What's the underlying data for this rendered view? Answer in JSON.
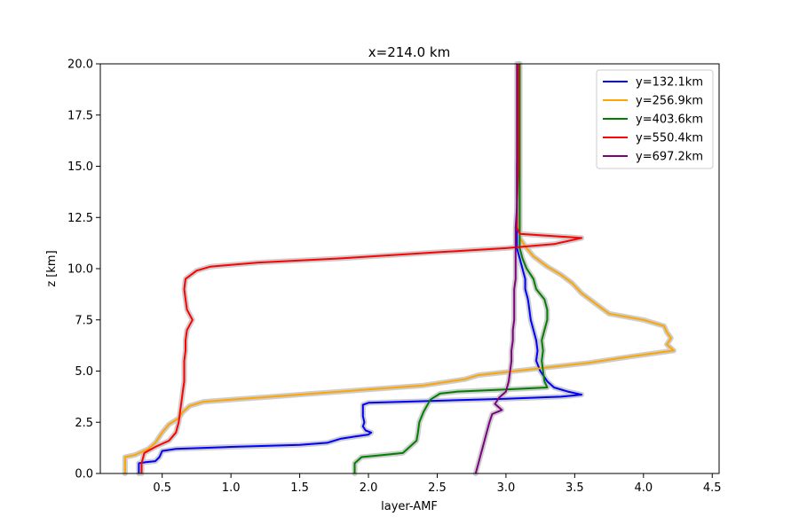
{
  "chart_data": {
    "type": "line",
    "title": "x=214.0 km",
    "xlabel": "layer-AMF",
    "ylabel": "z [km]",
    "xlim": [
      0.05,
      4.55
    ],
    "ylim": [
      0,
      20
    ],
    "xticks": [
      "0.5",
      "1.0",
      "1.5",
      "2.0",
      "2.5",
      "3.0",
      "3.5",
      "4.0",
      "4.5"
    ],
    "yticks": [
      "0.0",
      "2.5",
      "5.0",
      "7.5",
      "10.0",
      "12.5",
      "15.0",
      "17.5",
      "20.0"
    ],
    "legend_position": "top-right",
    "uncertainty_band_color": "#c8c8c8",
    "series": [
      {
        "name": "y=132.1km",
        "color": "#0000ff",
        "points": [
          [
            0.33,
            0
          ],
          [
            0.33,
            0.5
          ],
          [
            0.38,
            0.55
          ],
          [
            0.45,
            0.6
          ],
          [
            0.48,
            0.8
          ],
          [
            0.5,
            1.1
          ],
          [
            0.6,
            1.2
          ],
          [
            1.0,
            1.3
          ],
          [
            1.5,
            1.4
          ],
          [
            1.7,
            1.5
          ],
          [
            1.8,
            1.7
          ],
          [
            1.9,
            1.8
          ],
          [
            2.0,
            1.9
          ],
          [
            2.02,
            2.0
          ],
          [
            1.98,
            2.1
          ],
          [
            1.96,
            2.3
          ],
          [
            1.97,
            2.5
          ],
          [
            1.96,
            2.8
          ],
          [
            1.96,
            3.1
          ],
          [
            1.96,
            3.35
          ],
          [
            2.0,
            3.45
          ],
          [
            2.5,
            3.55
          ],
          [
            3.0,
            3.65
          ],
          [
            3.4,
            3.75
          ],
          [
            3.55,
            3.85
          ],
          [
            3.45,
            4.0
          ],
          [
            3.35,
            4.2
          ],
          [
            3.3,
            4.5
          ],
          [
            3.25,
            5.0
          ],
          [
            3.22,
            5.5
          ],
          [
            3.23,
            6.0
          ],
          [
            3.22,
            6.5
          ],
          [
            3.2,
            7.0
          ],
          [
            3.18,
            7.5
          ],
          [
            3.17,
            8.0
          ],
          [
            3.16,
            8.5
          ],
          [
            3.14,
            9.0
          ],
          [
            3.14,
            9.5
          ],
          [
            3.12,
            10.0
          ],
          [
            3.1,
            10.5
          ],
          [
            3.08,
            11.0
          ],
          [
            3.08,
            11.5
          ],
          [
            3.08,
            12.0
          ],
          [
            3.08,
            13.0
          ],
          [
            3.08,
            15.0
          ],
          [
            3.09,
            17.5
          ],
          [
            3.09,
            20.0
          ]
        ]
      },
      {
        "name": "y=256.9km",
        "color": "#ffa500",
        "points": [
          [
            0.23,
            0
          ],
          [
            0.23,
            0.8
          ],
          [
            0.3,
            0.9
          ],
          [
            0.4,
            1.2
          ],
          [
            0.45,
            1.5
          ],
          [
            0.5,
            2.0
          ],
          [
            0.55,
            2.4
          ],
          [
            0.62,
            2.7
          ],
          [
            0.65,
            3.0
          ],
          [
            0.7,
            3.3
          ],
          [
            0.8,
            3.5
          ],
          [
            1.0,
            3.6
          ],
          [
            1.3,
            3.75
          ],
          [
            1.6,
            3.9
          ],
          [
            2.0,
            4.1
          ],
          [
            2.4,
            4.3
          ],
          [
            2.7,
            4.6
          ],
          [
            2.8,
            4.8
          ],
          [
            3.2,
            5.1
          ],
          [
            3.6,
            5.4
          ],
          [
            3.9,
            5.7
          ],
          [
            4.22,
            6.0
          ],
          [
            4.17,
            6.3
          ],
          [
            4.2,
            6.6
          ],
          [
            4.17,
            6.9
          ],
          [
            4.15,
            7.2
          ],
          [
            4.0,
            7.5
          ],
          [
            3.75,
            7.8
          ],
          [
            3.65,
            8.3
          ],
          [
            3.55,
            8.8
          ],
          [
            3.48,
            9.3
          ],
          [
            3.4,
            9.7
          ],
          [
            3.3,
            10.1
          ],
          [
            3.2,
            10.6
          ],
          [
            3.15,
            11.0
          ],
          [
            3.1,
            11.5
          ],
          [
            3.1,
            12.0
          ],
          [
            3.1,
            13.0
          ],
          [
            3.1,
            15.0
          ],
          [
            3.1,
            17.5
          ],
          [
            3.1,
            20.0
          ]
        ]
      },
      {
        "name": "y=403.6km",
        "color": "#008000",
        "points": [
          [
            1.9,
            0
          ],
          [
            1.9,
            0.5
          ],
          [
            1.95,
            0.8
          ],
          [
            2.1,
            0.9
          ],
          [
            2.25,
            1.0
          ],
          [
            2.3,
            1.3
          ],
          [
            2.35,
            1.6
          ],
          [
            2.36,
            2.0
          ],
          [
            2.37,
            2.5
          ],
          [
            2.4,
            3.0
          ],
          [
            2.45,
            3.6
          ],
          [
            2.52,
            3.9
          ],
          [
            2.65,
            4.0
          ],
          [
            3.0,
            4.1
          ],
          [
            3.3,
            4.2
          ],
          [
            3.28,
            4.5
          ],
          [
            3.27,
            5.0
          ],
          [
            3.26,
            5.5
          ],
          [
            3.27,
            6.0
          ],
          [
            3.26,
            6.5
          ],
          [
            3.28,
            7.0
          ],
          [
            3.3,
            7.5
          ],
          [
            3.3,
            8.0
          ],
          [
            3.28,
            8.5
          ],
          [
            3.22,
            9.0
          ],
          [
            3.2,
            9.5
          ],
          [
            3.15,
            10.0
          ],
          [
            3.12,
            10.5
          ],
          [
            3.1,
            11.0
          ],
          [
            3.1,
            11.5
          ],
          [
            3.1,
            12.0
          ],
          [
            3.1,
            13.0
          ],
          [
            3.1,
            15.0
          ],
          [
            3.1,
            17.5
          ],
          [
            3.1,
            20.0
          ]
        ]
      },
      {
        "name": "y=550.4km",
        "color": "#ff0000",
        "points": [
          [
            0.35,
            0
          ],
          [
            0.35,
            0.5
          ],
          [
            0.37,
            1.0
          ],
          [
            0.45,
            1.3
          ],
          [
            0.55,
            1.6
          ],
          [
            0.6,
            2.0
          ],
          [
            0.62,
            2.5
          ],
          [
            0.63,
            3.0
          ],
          [
            0.64,
            3.5
          ],
          [
            0.65,
            4.0
          ],
          [
            0.66,
            4.5
          ],
          [
            0.66,
            5.0
          ],
          [
            0.66,
            5.5
          ],
          [
            0.67,
            6.0
          ],
          [
            0.67,
            6.5
          ],
          [
            0.68,
            7.0
          ],
          [
            0.72,
            7.5
          ],
          [
            0.68,
            8.0
          ],
          [
            0.67,
            8.5
          ],
          [
            0.66,
            9.0
          ],
          [
            0.67,
            9.5
          ],
          [
            0.75,
            9.9
          ],
          [
            0.85,
            10.1
          ],
          [
            1.2,
            10.3
          ],
          [
            1.8,
            10.5
          ],
          [
            2.5,
            10.8
          ],
          [
            3.0,
            11.0
          ],
          [
            3.35,
            11.2
          ],
          [
            3.55,
            11.5
          ],
          [
            3.1,
            11.7
          ],
          [
            3.08,
            12.0
          ],
          [
            3.08,
            13.0
          ],
          [
            3.09,
            15.0
          ],
          [
            3.09,
            17.5
          ],
          [
            3.09,
            20.0
          ]
        ]
      },
      {
        "name": "y=697.2km",
        "color": "#800080",
        "points": [
          [
            2.78,
            0
          ],
          [
            2.8,
            0.5
          ],
          [
            2.82,
            1.0
          ],
          [
            2.84,
            1.5
          ],
          [
            2.86,
            2.0
          ],
          [
            2.88,
            2.5
          ],
          [
            2.9,
            2.9
          ],
          [
            2.97,
            3.1
          ],
          [
            2.92,
            3.4
          ],
          [
            2.95,
            3.7
          ],
          [
            3.0,
            4.0
          ],
          [
            3.02,
            4.5
          ],
          [
            3.03,
            5.0
          ],
          [
            3.04,
            5.5
          ],
          [
            3.04,
            6.0
          ],
          [
            3.05,
            6.5
          ],
          [
            3.05,
            7.0
          ],
          [
            3.06,
            7.5
          ],
          [
            3.06,
            8.0
          ],
          [
            3.06,
            8.5
          ],
          [
            3.06,
            9.0
          ],
          [
            3.07,
            9.5
          ],
          [
            3.07,
            10.0
          ],
          [
            3.07,
            10.5
          ],
          [
            3.07,
            11.0
          ],
          [
            3.07,
            11.5
          ],
          [
            3.07,
            12.0
          ],
          [
            3.08,
            13.0
          ],
          [
            3.08,
            15.0
          ],
          [
            3.08,
            17.5
          ],
          [
            3.08,
            20.0
          ]
        ]
      }
    ]
  }
}
